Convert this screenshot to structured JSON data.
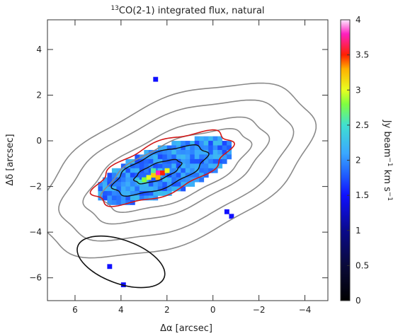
{
  "chart_data": {
    "type": "heatmap",
    "title": "13CO(2-1) integrated flux, natural",
    "title_parts": {
      "superscript": "13",
      "main": "CO(2-1) integrated flux, natural"
    },
    "xlabel": "Δα [arcsec]",
    "ylabel": "Δδ [arcsec]",
    "x_direction": "decreasing-to-right",
    "xlim": [
      7.2,
      -5.0
    ],
    "ylim": [
      -7.0,
      5.3
    ],
    "x_ticks": [
      6,
      4,
      2,
      0,
      -2,
      -4
    ],
    "x_tick_labels": [
      "6",
      "4",
      "2",
      "0",
      "−2",
      "−4"
    ],
    "y_ticks": [
      4,
      2,
      0,
      -2,
      -4,
      -6
    ],
    "y_tick_labels": [
      "4",
      "2",
      "0",
      "−2",
      "−4",
      "−6"
    ],
    "colorbar": {
      "label": "Jy beam−1 km s−1",
      "label_parts": [
        "Jy beam",
        "−1",
        " km s",
        "−1"
      ],
      "range": [
        0,
        4
      ],
      "ticks": [
        0,
        0.5,
        1,
        1.5,
        2,
        2.5,
        3,
        3.5,
        4
      ],
      "tick_labels": [
        "0",
        "0.5",
        "1",
        "1.5",
        "2",
        "2.5",
        "3",
        "3.5",
        "4"
      ],
      "stops": [
        {
          "v": 0.0,
          "color": "#000000"
        },
        {
          "v": 0.5,
          "color": "#0a0a3a"
        },
        {
          "v": 1.0,
          "color": "#0a0a8c"
        },
        {
          "v": 1.5,
          "color": "#1010ff"
        },
        {
          "v": 1.8,
          "color": "#2060ff"
        },
        {
          "v": 2.1,
          "color": "#3aa8ff"
        },
        {
          "v": 2.5,
          "color": "#40e0d0"
        },
        {
          "v": 2.8,
          "color": "#80ff40"
        },
        {
          "v": 3.0,
          "color": "#e8ff20"
        },
        {
          "v": 3.3,
          "color": "#ffb000"
        },
        {
          "v": 3.5,
          "color": "#ff2000"
        },
        {
          "v": 3.8,
          "color": "#ff20c0"
        },
        {
          "v": 4.0,
          "color": "#ffe8ff"
        }
      ]
    },
    "heatmap": {
      "pixel_size_arcsec": 0.2,
      "points": [
        {
          "x": 2.5,
          "y": -1.3,
          "v": 3.8
        },
        {
          "x": 2.3,
          "y": -1.3,
          "v": 3.5
        },
        {
          "x": 2.7,
          "y": -1.4,
          "v": 3.2
        },
        {
          "x": 2.9,
          "y": -1.5,
          "v": 3.0
        },
        {
          "x": 2.5,
          "y": -1.5,
          "v": 3.3
        },
        {
          "x": 3.1,
          "y": -1.6,
          "v": 2.8
        },
        {
          "x": 2.1,
          "y": -1.2,
          "v": 3.0
        },
        {
          "x": 3.3,
          "y": -1.7,
          "v": 2.5
        },
        {
          "x": 2.7,
          "y": -1.2,
          "v": 2.6
        },
        {
          "x": 4.6,
          "y": -5.4,
          "v": 1.5
        },
        {
          "x": 4.0,
          "y": -6.2,
          "v": 1.5
        },
        {
          "x": 2.6,
          "y": 2.8,
          "v": 1.5
        },
        {
          "x": -0.5,
          "y": -3.0,
          "v": 1.5
        },
        {
          "x": -0.7,
          "y": -3.2,
          "v": 1.5
        }
      ],
      "base_level_jy": 1.7
    },
    "contours": {
      "gray_levels_count": 4,
      "black_levels_count": 2,
      "red_outline": true
    },
    "beam": {
      "center": [
        4.0,
        -5.3
      ],
      "major_arcsec": 4.0,
      "minor_arcsec": 1.9,
      "pa_deg": -20
    }
  }
}
